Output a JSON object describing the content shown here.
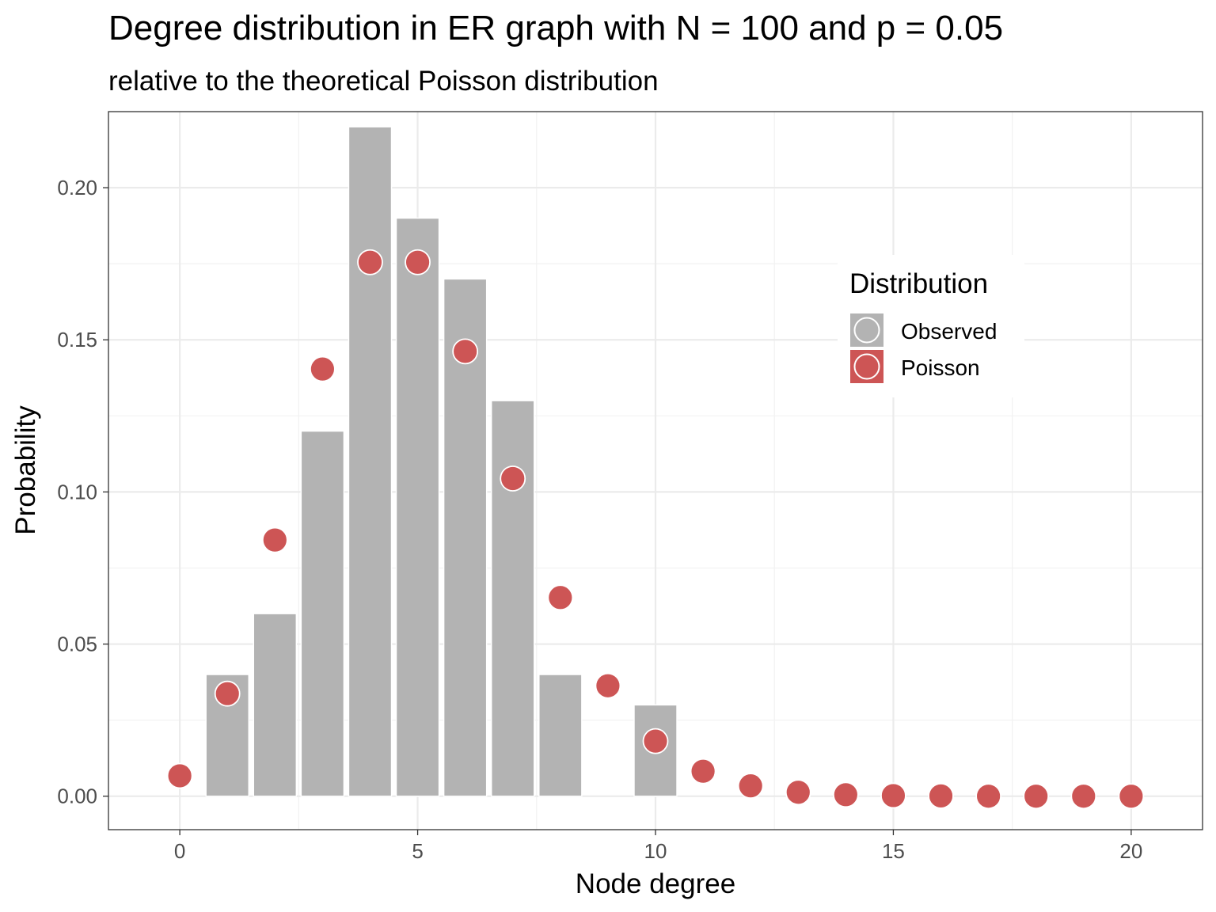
{
  "chart_data": {
    "type": "bar",
    "title": "Degree distribution in ER graph with N = 100 and p = 0.05",
    "subtitle": "relative to the theoretical Poisson distribution",
    "xlabel": "Node degree",
    "ylabel": "Probability",
    "xlim": [
      -1.5,
      21.5
    ],
    "ylim": [
      -0.011,
      0.225
    ],
    "x_ticks": [
      0,
      5,
      10,
      15,
      20
    ],
    "x_tick_labels": [
      "0",
      "5",
      "10",
      "15",
      "20"
    ],
    "y_ticks": [
      0,
      0.05,
      0.1,
      0.15,
      0.2
    ],
    "y_tick_labels": [
      "0.00",
      "0.05",
      "0.10",
      "0.15",
      "0.20"
    ],
    "grid": true,
    "legend": {
      "title": "Distribution",
      "position": "right-inside",
      "entries": [
        {
          "label": "Observed",
          "color": "#b3b3b3"
        },
        {
          "label": "Poisson",
          "color": "#cd5555"
        }
      ]
    },
    "series": [
      {
        "name": "Observed",
        "type": "bar",
        "color": "#b3b3b3",
        "x": [
          1,
          2,
          3,
          4,
          5,
          6,
          7,
          8,
          10
        ],
        "values": [
          0.04,
          0.06,
          0.12,
          0.22,
          0.19,
          0.17,
          0.13,
          0.04,
          0.03
        ]
      },
      {
        "name": "Poisson",
        "type": "scatter",
        "color": "#cd5555",
        "x": [
          0,
          1,
          2,
          3,
          4,
          5,
          6,
          7,
          8,
          9,
          10,
          11,
          12,
          13,
          14,
          15,
          16,
          17,
          18,
          19,
          20
        ],
        "values": [
          0.0067,
          0.0337,
          0.0842,
          0.1404,
          0.1755,
          0.1755,
          0.1462,
          0.1044,
          0.0653,
          0.0363,
          0.0181,
          0.0082,
          0.0034,
          0.0013,
          0.0005,
          0.0002,
          0.0001,
          0.0,
          0.0,
          0.0,
          0.0
        ]
      }
    ]
  }
}
